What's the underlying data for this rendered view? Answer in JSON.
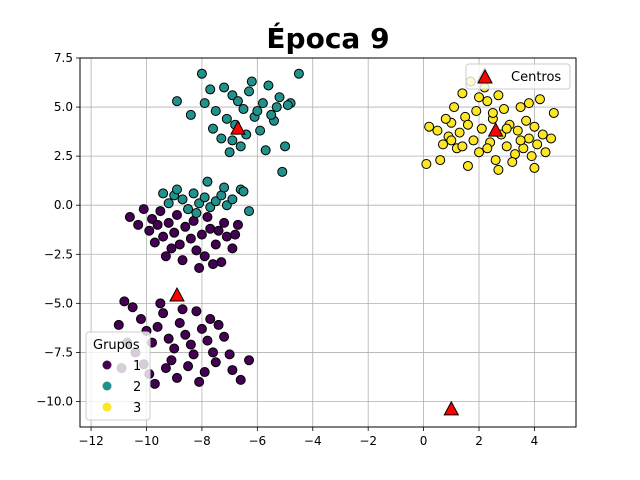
{
  "chart_data": {
    "type": "scatter",
    "title": "Época 9",
    "xlabel": "",
    "ylabel": "",
    "xlim": [
      -12.4,
      5.5
    ],
    "ylim": [
      -11.3,
      7.5
    ],
    "xticks": [
      -12,
      -10,
      -8,
      -6,
      -4,
      -2,
      0,
      2,
      4
    ],
    "xtick_labels": [
      "−12",
      "−10",
      "−8",
      "−6",
      "−4",
      "−2",
      "0",
      "2",
      "4"
    ],
    "yticks": [
      -10,
      -7.5,
      -5,
      -2.5,
      0,
      2.5,
      5,
      7.5
    ],
    "ytick_labels": [
      "−10.0",
      "−7.5",
      "−5.0",
      "−2.5",
      "0.0",
      "2.5",
      "5.0",
      "7.5"
    ],
    "grid": true,
    "cluster_legend": {
      "title": "Grupos",
      "placement": "lower-left",
      "entries": [
        {
          "label": "1",
          "color": "#440154"
        },
        {
          "label": "2",
          "color": "#21918c"
        },
        {
          "label": "3",
          "color": "#fde725"
        }
      ]
    },
    "centers_legend": {
      "label": "Centros",
      "placement": "upper-right",
      "color": "#ff0000"
    },
    "centers": [
      {
        "x": -6.7,
        "y": 3.9
      },
      {
        "x": 2.2,
        "y": 6.6
      },
      {
        "x": 2.6,
        "y": 3.8
      },
      {
        "x": -8.9,
        "y": -4.6
      },
      {
        "x": 1.0,
        "y": -10.4
      }
    ],
    "series": [
      {
        "name": "1",
        "color": "#440154",
        "points": [
          [
            -10.6,
            -0.6
          ],
          [
            -10.1,
            -0.2
          ],
          [
            -9.8,
            -0.7
          ],
          [
            -9.6,
            -1.0
          ],
          [
            -9.9,
            -1.3
          ],
          [
            -9.4,
            -1.6
          ],
          [
            -9.2,
            -0.9
          ],
          [
            -9.0,
            -1.4
          ],
          [
            -8.8,
            -2.0
          ],
          [
            -8.6,
            -1.1
          ],
          [
            -8.4,
            -1.7
          ],
          [
            -8.2,
            -2.3
          ],
          [
            -8.0,
            -1.5
          ],
          [
            -7.9,
            -2.6
          ],
          [
            -7.7,
            -1.2
          ],
          [
            -7.5,
            -2.0
          ],
          [
            -7.3,
            -2.9
          ],
          [
            -7.1,
            -1.6
          ],
          [
            -6.9,
            -2.2
          ],
          [
            -6.7,
            -1.0
          ],
          [
            -9.3,
            -2.6
          ],
          [
            -8.7,
            -2.8
          ],
          [
            -8.1,
            -3.2
          ],
          [
            -7.6,
            -3.0
          ],
          [
            -9.7,
            -1.9
          ],
          [
            -8.9,
            -0.5
          ],
          [
            -8.3,
            -0.8
          ],
          [
            -7.8,
            -0.6
          ],
          [
            -7.2,
            -0.9
          ],
          [
            -6.8,
            -1.5
          ],
          [
            -9.5,
            -0.3
          ],
          [
            -8.5,
            -0.2
          ],
          [
            -7.4,
            -1.3
          ],
          [
            -10.3,
            -1.0
          ],
          [
            -9.1,
            -2.2
          ],
          [
            -11.0,
            -6.1
          ],
          [
            -10.8,
            -4.9
          ],
          [
            -10.5,
            -5.2
          ],
          [
            -10.2,
            -5.8
          ],
          [
            -10.0,
            -6.4
          ],
          [
            -9.8,
            -7.0
          ],
          [
            -9.6,
            -6.2
          ],
          [
            -9.4,
            -5.5
          ],
          [
            -9.2,
            -6.8
          ],
          [
            -9.0,
            -7.3
          ],
          [
            -8.8,
            -6.0
          ],
          [
            -8.6,
            -6.6
          ],
          [
            -8.4,
            -7.1
          ],
          [
            -8.2,
            -5.4
          ],
          [
            -8.0,
            -6.3
          ],
          [
            -7.8,
            -6.9
          ],
          [
            -7.6,
            -7.5
          ],
          [
            -7.4,
            -6.1
          ],
          [
            -7.2,
            -6.7
          ],
          [
            -7.0,
            -7.6
          ],
          [
            -10.4,
            -7.5
          ],
          [
            -10.1,
            -8.1
          ],
          [
            -9.9,
            -8.6
          ],
          [
            -9.7,
            -9.1
          ],
          [
            -9.3,
            -8.3
          ],
          [
            -9.1,
            -7.9
          ],
          [
            -8.9,
            -8.8
          ],
          [
            -8.5,
            -8.2
          ],
          [
            -8.3,
            -7.6
          ],
          [
            -7.9,
            -8.5
          ],
          [
            -7.5,
            -8.0
          ],
          [
            -6.9,
            -8.4
          ],
          [
            -6.6,
            -8.9
          ],
          [
            -6.3,
            -7.9
          ],
          [
            -10.7,
            -7.0
          ],
          [
            -10.9,
            -8.3
          ],
          [
            -9.5,
            -5.0
          ],
          [
            -8.7,
            -5.3
          ],
          [
            -7.7,
            -5.8
          ],
          [
            -8.1,
            -9.0
          ]
        ]
      },
      {
        "name": "2",
        "color": "#21918c",
        "points": [
          [
            -8.0,
            6.7
          ],
          [
            -8.9,
            5.3
          ],
          [
            -8.4,
            4.6
          ],
          [
            -7.9,
            5.2
          ],
          [
            -7.7,
            5.9
          ],
          [
            -7.5,
            4.8
          ],
          [
            -7.3,
            3.4
          ],
          [
            -7.1,
            4.4
          ],
          [
            -6.9,
            5.6
          ],
          [
            -6.8,
            4.1
          ],
          [
            -6.6,
            3.0
          ],
          [
            -6.5,
            4.9
          ],
          [
            -6.3,
            5.8
          ],
          [
            -6.1,
            4.5
          ],
          [
            -5.9,
            3.8
          ],
          [
            -5.8,
            5.2
          ],
          [
            -5.6,
            6.1
          ],
          [
            -5.4,
            4.3
          ],
          [
            -5.2,
            5.5
          ],
          [
            -5.0,
            3.0
          ],
          [
            -4.8,
            5.2
          ],
          [
            -4.5,
            6.7
          ],
          [
            -7.6,
            3.9
          ],
          [
            -7.0,
            2.7
          ],
          [
            -6.4,
            3.6
          ],
          [
            -5.7,
            2.8
          ],
          [
            -6.2,
            6.3
          ],
          [
            -5.3,
            5.0
          ],
          [
            -6.7,
            5.3
          ],
          [
            -7.2,
            6.0
          ],
          [
            -5.1,
            1.7
          ],
          [
            -6.0,
            4.8
          ],
          [
            -5.5,
            4.6
          ],
          [
            -4.9,
            5.1
          ],
          [
            -6.9,
            3.3
          ],
          [
            -9.2,
            0.1
          ],
          [
            -9.0,
            0.5
          ],
          [
            -8.7,
            0.3
          ],
          [
            -8.5,
            -0.2
          ],
          [
            -8.3,
            0.6
          ],
          [
            -8.1,
            0.1
          ],
          [
            -7.9,
            0.4
          ],
          [
            -7.7,
            -0.1
          ],
          [
            -7.5,
            0.2
          ],
          [
            -7.3,
            0.5
          ],
          [
            -7.1,
            0.0
          ],
          [
            -6.9,
            0.3
          ],
          [
            -6.6,
            0.8
          ],
          [
            -6.3,
            -0.3
          ],
          [
            -8.9,
            0.8
          ],
          [
            -7.8,
            1.2
          ],
          [
            -7.2,
            0.9
          ],
          [
            -6.5,
            0.7
          ],
          [
            -9.4,
            0.6
          ],
          [
            -8.2,
            -0.4
          ]
        ]
      },
      {
        "name": "3",
        "color": "#fde725",
        "points": [
          [
            0.2,
            4.0
          ],
          [
            0.5,
            3.8
          ],
          [
            0.7,
            3.1
          ],
          [
            0.9,
            3.5
          ],
          [
            1.0,
            4.2
          ],
          [
            1.2,
            2.9
          ],
          [
            1.3,
            3.7
          ],
          [
            1.5,
            4.5
          ],
          [
            1.6,
            2.0
          ],
          [
            1.8,
            3.3
          ],
          [
            1.9,
            4.8
          ],
          [
            2.0,
            2.7
          ],
          [
            2.1,
            3.9
          ],
          [
            2.3,
            5.3
          ],
          [
            2.4,
            3.2
          ],
          [
            2.5,
            4.4
          ],
          [
            2.6,
            2.3
          ],
          [
            2.8,
            3.6
          ],
          [
            2.9,
            4.9
          ],
          [
            3.0,
            3.0
          ],
          [
            3.1,
            4.1
          ],
          [
            3.3,
            2.6
          ],
          [
            3.4,
            3.8
          ],
          [
            3.5,
            5.0
          ],
          [
            3.6,
            2.9
          ],
          [
            3.7,
            4.3
          ],
          [
            3.8,
            3.4
          ],
          [
            3.9,
            2.5
          ],
          [
            4.0,
            4.0
          ],
          [
            4.1,
            3.1
          ],
          [
            4.2,
            5.4
          ],
          [
            4.3,
            3.6
          ],
          [
            4.4,
            2.7
          ],
          [
            4.6,
            3.4
          ],
          [
            4.7,
            4.7
          ],
          [
            0.1,
            2.1
          ],
          [
            0.6,
            2.3
          ],
          [
            1.1,
            5.0
          ],
          [
            1.4,
            5.7
          ],
          [
            2.2,
            6.0
          ],
          [
            1.7,
            6.3
          ],
          [
            2.7,
            5.6
          ],
          [
            3.2,
            2.2
          ],
          [
            1.0,
            3.3
          ],
          [
            1.4,
            3.0
          ],
          [
            2.3,
            2.9
          ],
          [
            3.5,
            3.3
          ],
          [
            4.0,
            1.9
          ],
          [
            2.0,
            5.5
          ],
          [
            1.6,
            4.1
          ],
          [
            2.5,
            4.7
          ],
          [
            3.0,
            3.9
          ],
          [
            3.8,
            5.2
          ],
          [
            0.8,
            4.4
          ],
          [
            2.7,
            1.8
          ]
        ]
      }
    ]
  }
}
